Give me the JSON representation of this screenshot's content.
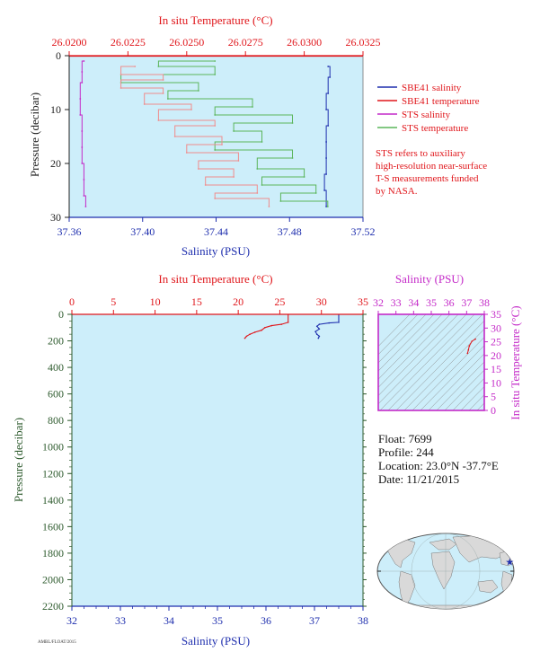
{
  "colors": {
    "plot_bg": "#cdeefa",
    "temperature": "#e0161b",
    "salinity": "#1f2fae",
    "sts_salinity": "#c42ac8",
    "sts_temperature": "#5ab55a",
    "sbe_temp_profile": "#f08c8c",
    "pressure_axis": "#2e5b2e",
    "map_land": "#d9d9d9",
    "map_ocean": "#cdeefa",
    "marker": "#1f2fae"
  },
  "chart_data": [
    {
      "id": "near-surface",
      "type": "line",
      "title": "",
      "top_axis": {
        "label": "In situ Temperature (°C)",
        "range": [
          26.02,
          26.0325
        ],
        "ticks": [
          "26.0200",
          "26.0225",
          "26.0250",
          "26.0275",
          "26.0300",
          "26.0325"
        ]
      },
      "bottom_axis": {
        "label": "Salinity (PSU)",
        "range": [
          37.36,
          37.52
        ],
        "ticks": [
          "37.36",
          "37.40",
          "37.44",
          "37.48",
          "37.52"
        ]
      },
      "y_axis": {
        "label": "Pressure (decibar)",
        "range": [
          0,
          30
        ],
        "ticks": [
          "0",
          "10",
          "20",
          "30"
        ],
        "inverted": true
      },
      "legend": {
        "placement": "right",
        "entries": [
          "SBE41 salinity",
          "SBE41 temperature",
          "STS salinity",
          "STS temperature"
        ]
      },
      "note": [
        "STS refers to auxiliary",
        "high-resolution near-surface",
        "T-S measurements funded",
        "by NASA."
      ],
      "series": [
        {
          "name": "SBE41 salinity",
          "axis": "salinity",
          "values": [
            [
              37.501,
              2
            ],
            [
              37.502,
              4
            ],
            [
              37.501,
              7
            ],
            [
              37.5,
              10
            ],
            [
              37.501,
              13
            ],
            [
              37.5,
              16
            ],
            [
              37.5,
              19
            ],
            [
              37.5,
              22
            ],
            [
              37.499,
              25
            ],
            [
              37.5,
              28
            ]
          ]
        },
        {
          "name": "SBE41 temperature",
          "axis": "temperature",
          "values": [
            [
              26.02,
              0
            ],
            [
              26.0325,
              0
            ]
          ]
        },
        {
          "name": "STS salinity",
          "axis": "salinity",
          "values": [
            [
              37.368,
              1
            ],
            [
              37.367,
              3
            ],
            [
              37.367,
              5
            ],
            [
              37.366,
              8
            ],
            [
              37.366,
              11
            ],
            [
              37.367,
              14
            ],
            [
              37.367,
              17
            ],
            [
              37.367,
              20
            ],
            [
              37.368,
              23
            ],
            [
              37.368,
              26
            ],
            [
              37.369,
              28
            ]
          ]
        },
        {
          "name": "STS temperature",
          "axis": "temperature",
          "values": [
            [
              26.0262,
              1
            ],
            [
              26.0238,
              2
            ],
            [
              26.0262,
              3.5
            ],
            [
              26.0222,
              5
            ],
            [
              26.0255,
              6.5
            ],
            [
              26.0242,
              8
            ],
            [
              26.0278,
              9.5
            ],
            [
              26.0262,
              11
            ],
            [
              26.0295,
              12.5
            ],
            [
              26.027,
              14
            ],
            [
              26.0282,
              16
            ],
            [
              26.0262,
              17.5
            ],
            [
              26.0295,
              19
            ],
            [
              26.028,
              21
            ],
            [
              26.03,
              22.5
            ],
            [
              26.0282,
              24
            ],
            [
              26.0305,
              25.5
            ],
            [
              26.029,
              27
            ],
            [
              26.031,
              28
            ]
          ]
        },
        {
          "name": "",
          "axis": "temperature",
          "values": [
            [
              26.0228,
              2
            ],
            [
              26.0222,
              3.5
            ],
            [
              26.024,
              4.5
            ],
            [
              26.0222,
              6
            ],
            [
              26.024,
              7
            ],
            [
              26.0232,
              9
            ],
            [
              26.0252,
              10
            ],
            [
              26.0238,
              12
            ],
            [
              26.0262,
              13
            ],
            [
              26.0245,
              15
            ],
            [
              26.0265,
              16.5
            ],
            [
              26.025,
              18
            ],
            [
              26.0272,
              19.5
            ],
            [
              26.0255,
              21
            ],
            [
              26.027,
              22.5
            ],
            [
              26.0258,
              24
            ],
            [
              26.028,
              25.5
            ],
            [
              26.0262,
              26.5
            ],
            [
              26.0285,
              28
            ]
          ]
        }
      ]
    },
    {
      "id": "full-profile",
      "type": "line",
      "title": "",
      "top_axis": {
        "label": "In situ Temperature (°C)",
        "range": [
          0,
          35
        ],
        "ticks": [
          "0",
          "5",
          "10",
          "15",
          "20",
          "25",
          "30",
          "35"
        ]
      },
      "bottom_axis": {
        "label": "Salinity (PSU)",
        "range": [
          32,
          38
        ],
        "ticks": [
          "32",
          "33",
          "34",
          "35",
          "36",
          "37",
          "38"
        ]
      },
      "y_axis": {
        "label": "Pressure (decibar)",
        "range": [
          0,
          2200
        ],
        "ticks": [
          "0",
          "200",
          "400",
          "600",
          "800",
          "1000",
          "1200",
          "1400",
          "1600",
          "1800",
          "2000",
          "2200"
        ],
        "inverted": true
      },
      "series": [
        {
          "name": "SBE41 temperature",
          "axis": "temperature",
          "values": [
            [
              26.0,
              0
            ],
            [
              26.0,
              60
            ],
            [
              25.2,
              75
            ],
            [
              24.0,
              85
            ],
            [
              23.2,
              100
            ],
            [
              22.8,
              120
            ],
            [
              22.0,
              135
            ],
            [
              21.4,
              150
            ],
            [
              21.0,
              165
            ],
            [
              20.8,
              180
            ]
          ]
        },
        {
          "name": "SBE41 salinity",
          "axis": "salinity",
          "values": [
            [
              37.5,
              0
            ],
            [
              37.5,
              60
            ],
            [
              37.3,
              65
            ],
            [
              37.1,
              75
            ],
            [
              37.05,
              90
            ],
            [
              37.1,
              110
            ],
            [
              37.02,
              130
            ],
            [
              37.05,
              150
            ],
            [
              37.1,
              165
            ],
            [
              37.08,
              180
            ]
          ]
        }
      ]
    },
    {
      "id": "ts-diagram",
      "type": "line",
      "title": "",
      "top_axis": {
        "label": "Salinity (PSU)",
        "range": [
          32,
          38
        ],
        "ticks": [
          "32",
          "33",
          "34",
          "35",
          "36",
          "37",
          "38"
        ]
      },
      "y_axis": {
        "label": "In situ Temperature (°C)",
        "range": [
          0,
          35
        ],
        "ticks": [
          "0",
          "5",
          "10",
          "15",
          "20",
          "25",
          "30",
          "35"
        ],
        "position": "right"
      },
      "grid": "density contours",
      "series": [
        {
          "name": "",
          "values": [
            [
              37.05,
              20.8
            ],
            [
              37.1,
              22.0
            ],
            [
              37.15,
              23.5
            ],
            [
              37.3,
              25.2
            ],
            [
              37.5,
              26.0
            ]
          ]
        }
      ]
    }
  ],
  "info": {
    "float": "Float:  7699",
    "profile": "Profile:  244",
    "location": "Location:  23.0°N  -37.7°E",
    "date": "Date:  11/21/2015"
  },
  "map": {
    "marker_lat": 23.0,
    "marker_lon": -37.7,
    "marker_icon": "star-icon"
  },
  "footer_code": "AMBL/FLOAT/2015"
}
